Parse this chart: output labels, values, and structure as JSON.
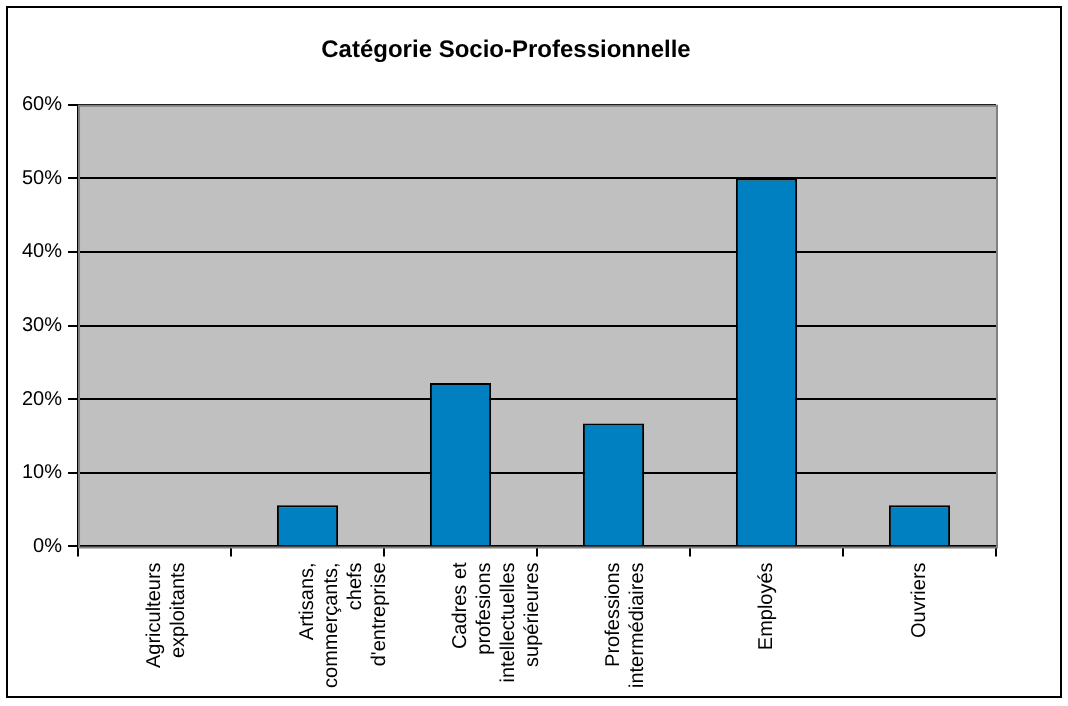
{
  "chart_data": {
    "type": "bar",
    "title": "Catégorie Socio-Professionnelle",
    "categories": [
      "Agriculteurs exploitants",
      "Artisans, commerçants, chefs d'entreprise",
      "Cadres et profesions intellectuelles supérieures",
      "Professions intermédiaires",
      "Employés",
      "Ouvriers"
    ],
    "values": [
      0,
      5.6,
      22.2,
      16.7,
      50,
      5.6
    ],
    "color": "#0080c0",
    "ylim": [
      0,
      60
    ],
    "yticks": [
      {
        "value": 0,
        "label": "0%"
      },
      {
        "value": 10,
        "label": "10%"
      },
      {
        "value": 20,
        "label": "20%"
      },
      {
        "value": 30,
        "label": "30%"
      },
      {
        "value": 40,
        "label": "40%"
      },
      {
        "value": 50,
        "label": "50%"
      },
      {
        "value": 60,
        "label": "60%"
      }
    ],
    "grid": "y",
    "legend": false
  }
}
